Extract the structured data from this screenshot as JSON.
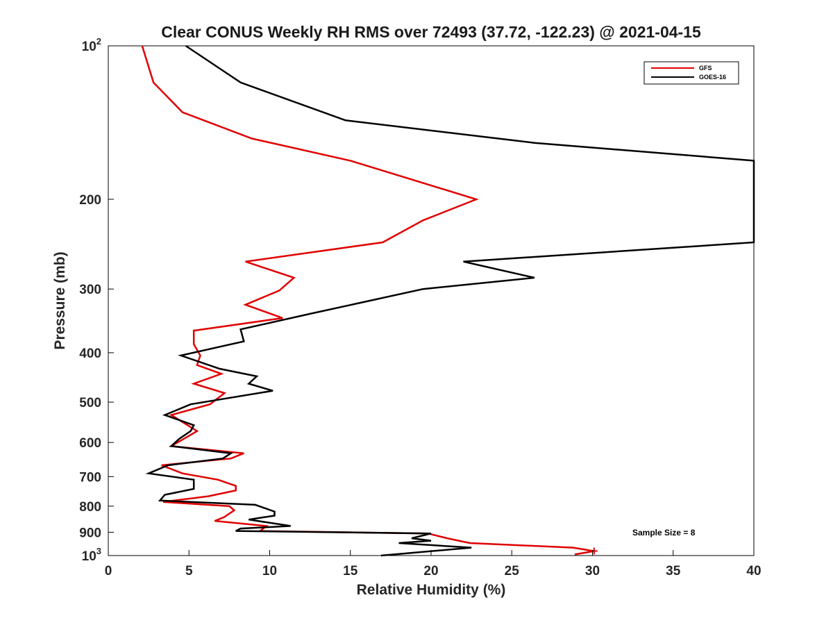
{
  "chart_data": {
    "type": "line",
    "title": "Clear CONUS Weekly RH RMS over 72493 (37.72, -122.23) @ 2021-04-15",
    "xlabel": "Relative Humidity (%)",
    "ylabel": "Pressure (mb)",
    "xlim": [
      0,
      40
    ],
    "ylim": [
      100,
      1000
    ],
    "y_scale": "log",
    "y_reversed": true,
    "grid": false,
    "legend_position": "top-right",
    "x_ticks": [
      0,
      5,
      10,
      15,
      20,
      25,
      30,
      35,
      40
    ],
    "y_ticks": [
      {
        "value": 100,
        "base": "10",
        "exp": "2"
      },
      {
        "value": 200,
        "label": "200"
      },
      {
        "value": 300,
        "label": "300"
      },
      {
        "value": 400,
        "label": "400"
      },
      {
        "value": 500,
        "label": "500"
      },
      {
        "value": 600,
        "label": "600"
      },
      {
        "value": 700,
        "label": "700"
      },
      {
        "value": 800,
        "label": "800"
      },
      {
        "value": 900,
        "label": "900"
      },
      {
        "value": 1000,
        "base": "10",
        "exp": "3"
      }
    ],
    "annotation": "Sample Size = 8",
    "series": [
      {
        "name": "GFS",
        "color": "#e00000",
        "points": [
          [
            2.1,
            100
          ],
          [
            2.8,
            118
          ],
          [
            4.6,
            135
          ],
          [
            8.9,
            152
          ],
          [
            15.0,
            168
          ],
          [
            22.8,
            200
          ],
          [
            19.5,
            220
          ],
          [
            17.0,
            243
          ],
          [
            8.5,
            265
          ],
          [
            11.5,
            285
          ],
          [
            10.6,
            302
          ],
          [
            8.5,
            322
          ],
          [
            10.8,
            342
          ],
          [
            5.3,
            362
          ],
          [
            5.3,
            385
          ],
          [
            5.7,
            405
          ],
          [
            5.5,
            423
          ],
          [
            7.0,
            440
          ],
          [
            5.3,
            460
          ],
          [
            7.2,
            480
          ],
          [
            6.3,
            505
          ],
          [
            3.9,
            530
          ],
          [
            5.5,
            570
          ],
          [
            3.9,
            610
          ],
          [
            8.4,
            630
          ],
          [
            7.6,
            645
          ],
          [
            3.3,
            665
          ],
          [
            4.6,
            690
          ],
          [
            6.8,
            710
          ],
          [
            7.9,
            730
          ],
          [
            7.9,
            745
          ],
          [
            6.2,
            765
          ],
          [
            3.4,
            785
          ],
          [
            7.5,
            800
          ],
          [
            7.8,
            815
          ],
          [
            7.2,
            840
          ],
          [
            6.6,
            855
          ],
          [
            9.8,
            875
          ],
          [
            9.4,
            895
          ],
          [
            19.8,
            905
          ],
          [
            21.0,
            925
          ],
          [
            22.4,
            945
          ],
          [
            28.8,
            965
          ],
          [
            30.1,
            980
          ],
          [
            28.9,
            995
          ]
        ]
      },
      {
        "name": "GOES-16",
        "color": "#000000",
        "points": [
          [
            4.8,
            100
          ],
          [
            8.2,
            118
          ],
          [
            14.7,
            140
          ],
          [
            26.4,
            155
          ],
          [
            40.0,
            168
          ],
          [
            40.0,
            243
          ],
          [
            22.0,
            265
          ],
          [
            26.4,
            285
          ],
          [
            19.5,
            300
          ],
          [
            12.6,
            335
          ],
          [
            8.2,
            360
          ],
          [
            8.4,
            380
          ],
          [
            4.5,
            405
          ],
          [
            6.9,
            430
          ],
          [
            9.2,
            445
          ],
          [
            8.7,
            460
          ],
          [
            10.2,
            475
          ],
          [
            5.1,
            505
          ],
          [
            3.5,
            530
          ],
          [
            5.3,
            555
          ],
          [
            5.1,
            570
          ],
          [
            4.4,
            590
          ],
          [
            3.9,
            610
          ],
          [
            7.6,
            630
          ],
          [
            7.1,
            645
          ],
          [
            3.7,
            665
          ],
          [
            2.5,
            690
          ],
          [
            5.3,
            710
          ],
          [
            5.3,
            740
          ],
          [
            3.5,
            760
          ],
          [
            3.2,
            780
          ],
          [
            9.1,
            795
          ],
          [
            10.3,
            820
          ],
          [
            10.3,
            835
          ],
          [
            8.7,
            850
          ],
          [
            11.3,
            875
          ],
          [
            8.2,
            885
          ],
          [
            7.9,
            895
          ],
          [
            20.0,
            905
          ],
          [
            18.8,
            925
          ],
          [
            20.0,
            935
          ],
          [
            18.0,
            945
          ],
          [
            22.5,
            965
          ],
          [
            16.9,
            1000
          ]
        ]
      }
    ]
  }
}
